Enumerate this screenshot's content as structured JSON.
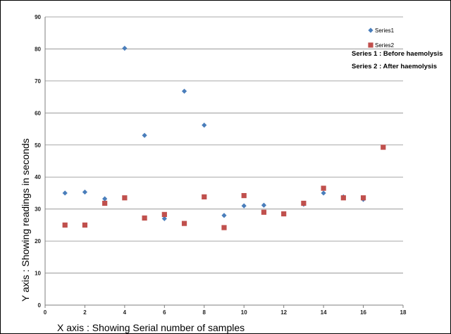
{
  "chart_data": {
    "type": "scatter",
    "title": "",
    "xlabel": "X axis : Showing Serial number of samples",
    "ylabel": "Y axis : Showing readings in seconds",
    "xlim": [
      0,
      18
    ],
    "ylim": [
      0,
      90
    ],
    "x_ticks": [
      "0",
      "2",
      "4",
      "6",
      "8",
      "10",
      "12",
      "14",
      "16",
      "18"
    ],
    "y_ticks": [
      "0",
      "10",
      "20",
      "30",
      "40",
      "50",
      "60",
      "70",
      "80",
      "90"
    ],
    "grid": "horizontal",
    "legend_position": "top-right",
    "series": [
      {
        "name": "Series1",
        "marker": "diamond",
        "color": "#4a7ebb",
        "points": [
          {
            "x": 1,
            "y": 35.0
          },
          {
            "x": 2,
            "y": 35.3
          },
          {
            "x": 3,
            "y": 33.2
          },
          {
            "x": 4,
            "y": 80.2
          },
          {
            "x": 5,
            "y": 53.0
          },
          {
            "x": 6,
            "y": 27.0
          },
          {
            "x": 7,
            "y": 66.8
          },
          {
            "x": 8,
            "y": 56.2
          },
          {
            "x": 9,
            "y": 28.0
          },
          {
            "x": 10,
            "y": 31.0
          },
          {
            "x": 11,
            "y": 31.2
          },
          {
            "x": 12,
            "y": 28.5
          },
          {
            "x": 13,
            "y": 31.5
          },
          {
            "x": 14,
            "y": 35.0
          },
          {
            "x": 15,
            "y": 33.8
          },
          {
            "x": 16,
            "y": 33.0
          }
        ]
      },
      {
        "name": "Series2",
        "marker": "square",
        "color": "#c0504d",
        "points": [
          {
            "x": 1,
            "y": 25.0
          },
          {
            "x": 2,
            "y": 25.0
          },
          {
            "x": 3,
            "y": 31.8
          },
          {
            "x": 4,
            "y": 33.5
          },
          {
            "x": 5,
            "y": 27.2
          },
          {
            "x": 6,
            "y": 28.3
          },
          {
            "x": 7,
            "y": 25.5
          },
          {
            "x": 8,
            "y": 33.8
          },
          {
            "x": 9,
            "y": 24.2
          },
          {
            "x": 10,
            "y": 34.2
          },
          {
            "x": 11,
            "y": 29.0
          },
          {
            "x": 12,
            "y": 28.5
          },
          {
            "x": 13,
            "y": 31.8
          },
          {
            "x": 14,
            "y": 36.5
          },
          {
            "x": 15,
            "y": 33.5
          },
          {
            "x": 16,
            "y": 33.5
          },
          {
            "x": 17,
            "y": 49.3
          }
        ]
      }
    ],
    "annotations": [
      "Series 1 : Before  haemolysis",
      "Series 2 : After  haemolysis"
    ]
  }
}
